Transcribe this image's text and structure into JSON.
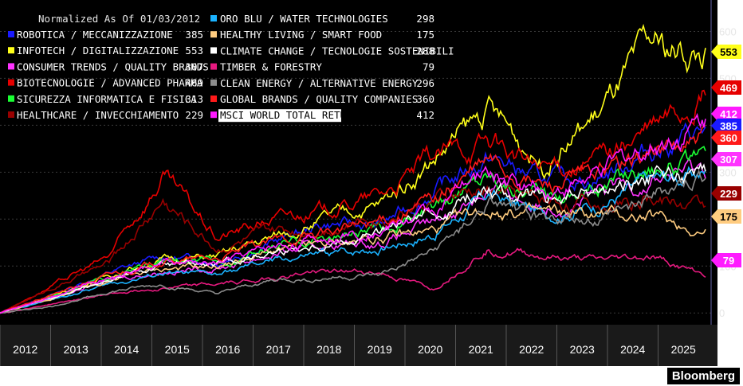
{
  "chart_data": {
    "type": "line",
    "title": "Normalized As Of 01/03/2012",
    "x": [
      "2012",
      "2013",
      "2014",
      "2015",
      "2016",
      "2017",
      "2018",
      "2019",
      "2020",
      "2021",
      "2022",
      "2023",
      "2024",
      "2025"
    ],
    "xlabel": "",
    "ylabel": "",
    "yticks": [
      0,
      100,
      200,
      300,
      400,
      500,
      600
    ],
    "ylim": [
      -20,
      650
    ],
    "grid": true,
    "series": [
      {
        "name": "ROBOTICA / MECCANIZZAZIONE",
        "final": "385",
        "color": "#1a1aff",
        "values": [
          0,
          40,
          85,
          120,
          110,
          150,
          190,
          185,
          260,
          330,
          280,
          290,
          350,
          385
        ]
      },
      {
        "name": "INFOTECH / DIGITALIZZAZIONE",
        "final": "553",
        "color": "#ffff1a",
        "values": [
          0,
          38,
          80,
          115,
          120,
          160,
          200,
          230,
          330,
          430,
          320,
          420,
          560,
          553
        ]
      },
      {
        "name": "CONSUMER TRENDS / QUALITY BRANDS",
        "final": "307",
        "color": "#ff33ff",
        "values": [
          0,
          35,
          70,
          90,
          95,
          125,
          145,
          150,
          190,
          270,
          230,
          250,
          290,
          307
        ]
      },
      {
        "name": "BIOTECNOLOGIE / ADVANCED PHARMA",
        "final": "469",
        "color": "#e60000",
        "values": [
          0,
          60,
          120,
          290,
          160,
          200,
          220,
          250,
          330,
          370,
          300,
          330,
          390,
          469
        ]
      },
      {
        "name": "SICUREZZA INFORMATICA E FISICA",
        "final": "313",
        "color": "#1aff33",
        "values": [
          0,
          38,
          75,
          110,
          105,
          140,
          160,
          175,
          220,
          300,
          250,
          270,
          320,
          313
        ]
      },
      {
        "name": "HEALTHCARE / INVECCHIAMENTO",
        "final": "229",
        "color": "#990000",
        "values": [
          0,
          55,
          105,
          240,
          140,
          170,
          185,
          205,
          240,
          260,
          240,
          235,
          245,
          229
        ]
      },
      {
        "name": "ORO BLU / WATER TECHNOLOGIES",
        "final": "298",
        "color": "#1ab2ff",
        "values": [
          0,
          30,
          60,
          85,
          80,
          110,
          125,
          140,
          170,
          250,
          210,
          230,
          280,
          298
        ]
      },
      {
        "name": "HEALTHY LIVING / SMART FOOD",
        "final": "175",
        "color": "#ffcc80",
        "values": [
          0,
          32,
          70,
          95,
          100,
          130,
          145,
          160,
          175,
          220,
          210,
          210,
          205,
          175
        ]
      },
      {
        "name": "CLIMATE CHANGE / TECNOLOGIE SOSTENIBILI",
        "final": "288",
        "color": "#ffffff",
        "values": [
          0,
          34,
          70,
          100,
          100,
          130,
          150,
          170,
          210,
          270,
          240,
          250,
          290,
          288
        ]
      },
      {
        "name": "TIMBER & FORESTRY",
        "final": "79",
        "color": "#e6197f",
        "values": [
          0,
          20,
          40,
          55,
          60,
          75,
          90,
          85,
          50,
          140,
          120,
          110,
          120,
          79
        ]
      },
      {
        "name": "CLEAN ENERGY / ALTERNATIVE ENERGY",
        "final": "296",
        "color": "#8c8c8c",
        "values": [
          0,
          15,
          45,
          60,
          40,
          70,
          75,
          80,
          130,
          230,
          200,
          200,
          250,
          296
        ]
      },
      {
        "name": "GLOBAL BRANDS / QUALITY COMPANIES",
        "final": "360",
        "color": "#ff1a1a",
        "values": [
          0,
          40,
          80,
          110,
          115,
          150,
          170,
          195,
          240,
          320,
          270,
          290,
          340,
          360
        ]
      },
      {
        "name": "MSCI WORLD TOTAL RETURN",
        "final": "412",
        "color": "#ff1aff",
        "values": [
          0,
          38,
          78,
          105,
          105,
          140,
          160,
          180,
          220,
          300,
          260,
          290,
          360,
          412
        ]
      }
    ],
    "annotations": [
      {
        "label": "553",
        "color": "#ffff1a",
        "text_color": "#000000"
      },
      {
        "label": "469",
        "color": "#e60000",
        "text_color": "#ffffff"
      },
      {
        "label": "412",
        "color": "#ff1aff",
        "text_color": "#ffffff"
      },
      {
        "label": "385",
        "color": "#1a1aff",
        "text_color": "#ffffff"
      },
      {
        "label": "360",
        "color": "#ff1a1a",
        "text_color": "#ffffff"
      },
      {
        "label": "307",
        "color": "#ff33ff",
        "text_color": "#ffffff"
      },
      {
        "label": "229",
        "color": "#990000",
        "text_color": "#ffffff"
      },
      {
        "label": "175",
        "color": "#ffcc80",
        "text_color": "#000000"
      },
      {
        "label": "79",
        "color": "#ff1aff",
        "text_color": "#ffffff"
      }
    ]
  },
  "brand": "Bloomberg"
}
